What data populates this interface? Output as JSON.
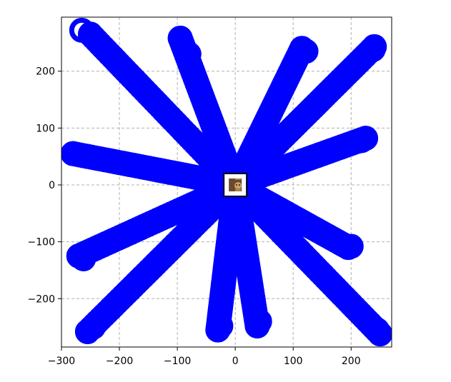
{
  "chart_data": {
    "type": "scatter",
    "title": "",
    "xlabel": "",
    "ylabel": "",
    "xlim": [
      -300,
      270
    ],
    "ylim": [
      -285,
      295
    ],
    "x_ticks": [
      -300,
      -200,
      -100,
      0,
      100,
      200
    ],
    "x_tick_labels": [
      "−300",
      "−200",
      "−100",
      "0",
      "100",
      "200"
    ],
    "y_ticks": [
      -200,
      -100,
      0,
      100,
      200
    ],
    "y_tick_labels": [
      "−200",
      "−100",
      "0",
      "100",
      "200"
    ],
    "grid": true,
    "grid_style": "dashed",
    "marker": "hollow-circle",
    "marker_color": "#0000ff",
    "center_marker": {
      "x": 0,
      "y": 0,
      "icon": "dog-photo-thumbnail"
    },
    "series": [
      {
        "points": [
          [
            -250,
            265
          ],
          [
            -265,
            272
          ]
        ]
      },
      {
        "points": [
          [
            -95,
            258
          ],
          [
            -80,
            230
          ]
        ]
      },
      {
        "points": [
          [
            115,
            240
          ],
          [
            122,
            235
          ]
        ]
      },
      {
        "points": [
          [
            240,
            243
          ],
          [
            238,
            238
          ]
        ]
      },
      {
        "points": [
          [
            -280,
            55
          ],
          [
            -255,
            50
          ]
        ]
      },
      {
        "points": [
          [
            225,
            82
          ],
          [
            218,
            78
          ]
        ]
      },
      {
        "points": [
          [
            -270,
            -125
          ],
          [
            -262,
            -130
          ]
        ]
      },
      {
        "points": [
          [
            195,
            -110
          ],
          [
            200,
            -108
          ]
        ]
      },
      {
        "points": [
          [
            -255,
            -258
          ],
          [
            -245,
            -250
          ]
        ]
      },
      {
        "points": [
          [
            -30,
            -255
          ],
          [
            -25,
            -248
          ]
        ]
      },
      {
        "points": [
          [
            38,
            -248
          ],
          [
            42,
            -240
          ]
        ]
      },
      {
        "points": [
          [
            250,
            -262
          ],
          [
            245,
            -255
          ]
        ]
      }
    ]
  }
}
